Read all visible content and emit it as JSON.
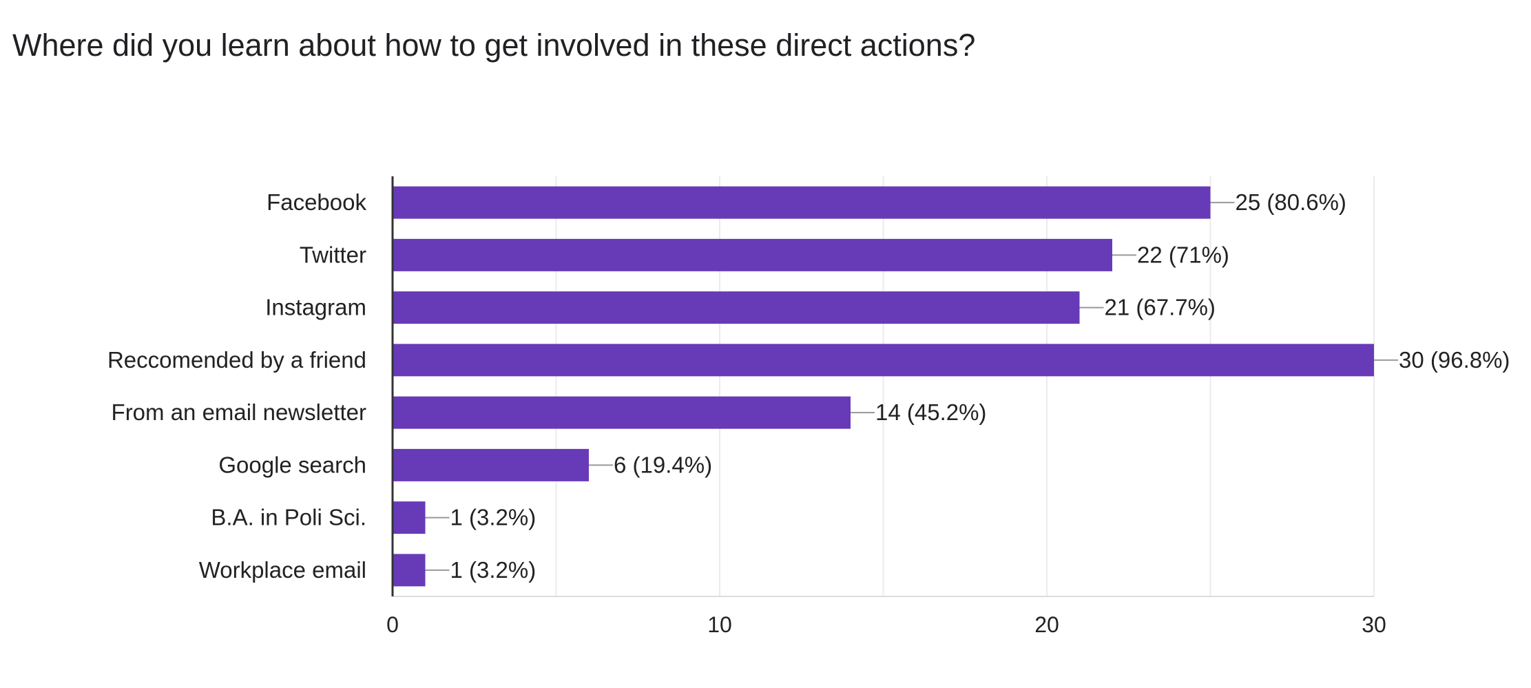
{
  "chart_data": {
    "type": "bar",
    "orientation": "horizontal",
    "title": "Where did you learn about how to get involved in these direct actions?",
    "categories": [
      "Facebook",
      "Twitter",
      "Instagram",
      "Reccomended by a friend",
      "From an email newsletter",
      "Google search",
      "B.A. in Poli Sci.",
      "Workplace email"
    ],
    "values": [
      25,
      22,
      21,
      30,
      14,
      6,
      1,
      1
    ],
    "data_labels": [
      "25 (80.6%)",
      "22 (71%)",
      "21 (67.7%)",
      "30 (96.8%)",
      "14 (45.2%)",
      "6 (19.4%)",
      "1 (3.2%)",
      "1 (3.2%)"
    ],
    "xlim": [
      0,
      30
    ],
    "x_ticks": [
      0,
      10,
      20,
      30
    ],
    "x_tick_labels": [
      "0",
      "10",
      "20",
      "30"
    ],
    "grid": true,
    "bar_color": "#673ab7",
    "grid_color": "#ebebeb",
    "axis_color": "#333333",
    "text_color": "#222222"
  }
}
